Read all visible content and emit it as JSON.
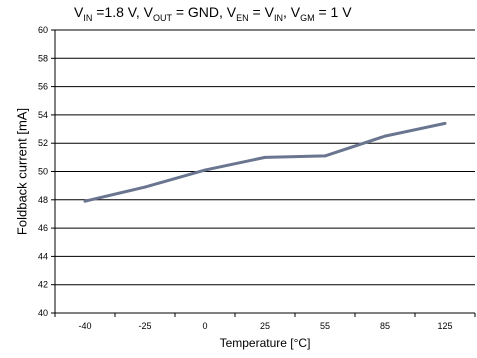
{
  "chart_data": {
    "type": "line",
    "title_parts": [
      {
        "t": "V"
      },
      {
        "s": "IN"
      },
      {
        "t": " =1.8 V, V"
      },
      {
        "s": "OUT"
      },
      {
        "t": " = GND,  V"
      },
      {
        "s": "EN"
      },
      {
        "t": " = V"
      },
      {
        "s": "IN"
      },
      {
        "t": ", V"
      },
      {
        "s": "GM"
      },
      {
        "t": " = 1 V"
      }
    ],
    "xlabel": "Temperature [°C]",
    "ylabel": "Foldback current [mA]",
    "categories": [
      "-40",
      "-25",
      "0",
      "25",
      "55",
      "85",
      "125"
    ],
    "series": [
      {
        "values": [
          47.9,
          48.9,
          50.1,
          51.0,
          51.1,
          52.5,
          53.4
        ]
      }
    ],
    "ylim": [
      40,
      60
    ],
    "yticks": [
      40,
      42,
      44,
      46,
      48,
      50,
      52,
      54,
      56,
      58,
      60
    ],
    "grid": true,
    "line_color": "#6a7590"
  }
}
